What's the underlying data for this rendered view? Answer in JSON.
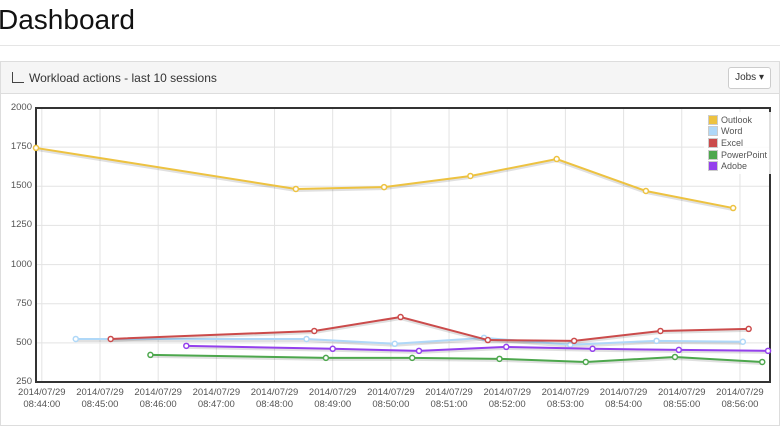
{
  "page": {
    "title": "Dashboard"
  },
  "panel": {
    "title": "Workload actions - last 10 sessions",
    "button": "Jobs"
  },
  "chart_data": {
    "type": "line",
    "xlim": [
      "2014/07/29 08:43:54",
      "2014/07/29 08:56:31"
    ],
    "xticks": [
      "2014/07/29\n08:44:00",
      "2014/07/29\n08:45:00",
      "2014/07/29\n08:46:00",
      "2014/07/29\n08:47:00",
      "2014/07/29\n08:48:00",
      "2014/07/29\n08:49:00",
      "2014/07/29\n08:50:00",
      "2014/07/29\n08:51:00",
      "2014/07/29\n08:52:00",
      "2014/07/29\n08:53:00",
      "2014/07/29\n08:54:00",
      "2014/07/29\n08:55:00",
      "2014/07/29\n08:56:00"
    ],
    "ylim": [
      250,
      2000
    ],
    "yticks": [
      250,
      500,
      750,
      1000,
      1250,
      1500,
      1750,
      2000
    ],
    "grid": true,
    "legend": "top-right",
    "series": [
      {
        "name": "Outlook",
        "color": "#edc240",
        "x": [
          "2014/07/29 08:43:54",
          "2014/07/29 08:48:22",
          "2014/07/29 08:49:53",
          "2014/07/29 08:51:22",
          "2014/07/29 08:52:51",
          "2014/07/29 08:54:23",
          "2014/07/29 08:55:53"
        ],
        "values": [
          1745,
          1483,
          1495,
          1566,
          1674,
          1470,
          1361
        ]
      },
      {
        "name": "Word",
        "color": "#afd8f8",
        "x": [
          "2014/07/29 08:44:35",
          "2014/07/29 08:48:33",
          "2014/07/29 08:50:04",
          "2014/07/29 08:51:36",
          "2014/07/29 08:53:05",
          "2014/07/29 08:54:34",
          "2014/07/29 08:56:03"
        ],
        "values": [
          525,
          525,
          494,
          532,
          488,
          513,
          507
        ]
      },
      {
        "name": "Excel",
        "color": "#cb4b4b",
        "x": [
          "2014/07/29 08:45:11",
          "2014/07/29 08:48:41",
          "2014/07/29 08:50:10",
          "2014/07/29 08:51:40",
          "2014/07/29 08:53:09",
          "2014/07/29 08:54:38",
          "2014/07/29 08:56:09"
        ],
        "values": [
          525,
          576,
          665,
          518,
          513,
          576,
          589
        ]
      },
      {
        "name": "PowerPoint",
        "color": "#4da74d",
        "x": [
          "2014/07/29 08:45:52",
          "2014/07/29 08:48:53",
          "2014/07/29 08:50:22",
          "2014/07/29 08:51:52",
          "2014/07/29 08:53:21",
          "2014/07/29 08:54:53",
          "2014/07/29 08:56:23"
        ],
        "values": [
          423,
          404,
          404,
          398,
          378,
          410,
          378
        ]
      },
      {
        "name": "Adobe",
        "color": "#9440ed",
        "x": [
          "2014/07/29 08:46:29",
          "2014/07/29 08:49:00",
          "2014/07/29 08:50:29",
          "2014/07/29 08:51:59",
          "2014/07/29 08:53:28",
          "2014/07/29 08:54:57",
          "2014/07/29 08:56:29"
        ],
        "values": [
          481,
          462,
          449,
          474,
          462,
          455,
          449
        ]
      }
    ]
  }
}
